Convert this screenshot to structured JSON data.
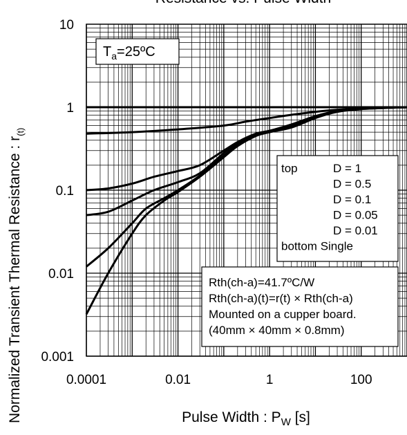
{
  "chart_data": {
    "type": "line",
    "title": "Resistance vs. Pulse Width",
    "xlabel": {
      "main": "Pulse Width : P",
      "sub": "W",
      "tail": " [s]"
    },
    "ylabel": {
      "main": "Normalized Transient Thermal Resistance : r",
      "sub": "(t)"
    },
    "xscale": "log",
    "yscale": "log",
    "xlim": [
      0.0001,
      1000
    ],
    "ylim": [
      0.001,
      10
    ],
    "grid": true,
    "xticks": [
      {
        "value": 0.0001,
        "label": "0.0001"
      },
      {
        "value": 0.01,
        "label": "0.01"
      },
      {
        "value": 1,
        "label": "1"
      },
      {
        "value": 100,
        "label": "100"
      }
    ],
    "yticks": [
      {
        "value": 10,
        "label": "10"
      },
      {
        "value": 1,
        "label": "1"
      },
      {
        "value": 0.1,
        "label": "0.1"
      },
      {
        "value": 0.01,
        "label": "0.01"
      },
      {
        "value": 0.001,
        "label": "0.001"
      }
    ],
    "annotation": {
      "main": "T",
      "sub": "a",
      "tail": "=25ºC"
    },
    "legend": {
      "placement": "right",
      "lines": [
        {
          "left": "top",
          "right": "D = 1"
        },
        {
          "left": "",
          "right": "D = 0.5"
        },
        {
          "left": "",
          "right": "D = 0.1"
        },
        {
          "left": "",
          "right": "D = 0.05"
        },
        {
          "left": "",
          "right": "D = 0.01"
        },
        {
          "left": "bottom Single",
          "right": ""
        }
      ]
    },
    "notes": [
      "Rth(ch-a)=41.7ºC/W",
      "Rth(ch-a)(t)=r(t) × Rth(ch-a)",
      "Mounted on a cupper board.",
      "(40mm × 40mm × 0.8mm)"
    ],
    "series": [
      {
        "x": [
          0.0001,
          1000
        ],
        "y": [
          1,
          1
        ]
      },
      {
        "x": [
          0.0001,
          0.001,
          0.01,
          0.1,
          0.3,
          1,
          3,
          10,
          30,
          100,
          1000
        ],
        "y": [
          0.48,
          0.5,
          0.54,
          0.6,
          0.67,
          0.74,
          0.81,
          0.88,
          0.93,
          0.96,
          1
        ]
      },
      {
        "x": [
          0.0001,
          0.0003,
          0.001,
          0.003,
          0.01,
          0.03,
          0.1,
          0.2,
          0.5,
          1,
          3,
          10,
          30,
          100,
          1000
        ],
        "y": [
          0.1,
          0.105,
          0.12,
          0.145,
          0.17,
          0.2,
          0.3,
          0.38,
          0.48,
          0.52,
          0.62,
          0.78,
          0.9,
          0.96,
          1
        ]
      },
      {
        "x": [
          0.0001,
          0.0003,
          0.001,
          0.003,
          0.01,
          0.03,
          0.1,
          0.2,
          0.5,
          1,
          3,
          10,
          30,
          100,
          1000
        ],
        "y": [
          0.05,
          0.055,
          0.075,
          0.1,
          0.125,
          0.16,
          0.28,
          0.37,
          0.47,
          0.51,
          0.6,
          0.77,
          0.89,
          0.96,
          1
        ]
      },
      {
        "x": [
          0.0001,
          0.0003,
          0.001,
          0.002,
          0.005,
          0.01,
          0.03,
          0.1,
          0.2,
          0.5,
          1,
          3,
          10,
          30,
          100,
          1000
        ],
        "y": [
          0.012,
          0.02,
          0.04,
          0.06,
          0.08,
          0.1,
          0.15,
          0.26,
          0.35,
          0.46,
          0.5,
          0.58,
          0.75,
          0.88,
          0.95,
          1
        ]
      },
      {
        "x": [
          0.0001,
          0.0003,
          0.001,
          0.002,
          0.005,
          0.01,
          0.03,
          0.1,
          0.2,
          0.5,
          1,
          3,
          10,
          30,
          100,
          1000
        ],
        "y": [
          0.0032,
          0.01,
          0.03,
          0.05,
          0.075,
          0.095,
          0.145,
          0.25,
          0.34,
          0.45,
          0.5,
          0.57,
          0.74,
          0.88,
          0.95,
          1
        ]
      }
    ]
  }
}
